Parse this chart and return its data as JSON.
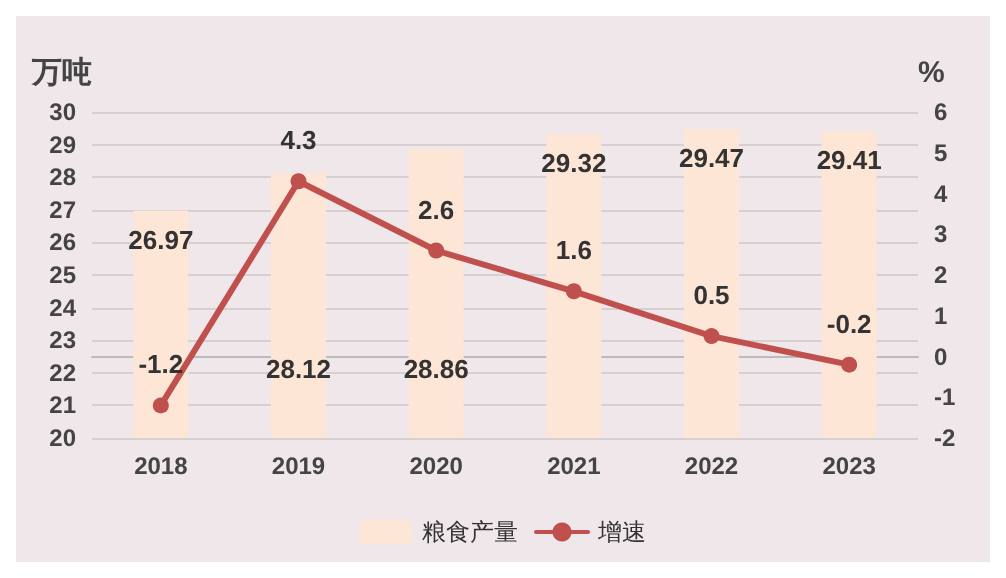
{
  "chart_data": {
    "type": "bar",
    "categories": [
      "2018",
      "2019",
      "2020",
      "2021",
      "2022",
      "2023"
    ],
    "ylabel": "万吨",
    "y2label": "%",
    "series": [
      {
        "name": "粮食产量",
        "color": "#fde6d6",
        "values": [
          26.97,
          28.12,
          28.86,
          29.32,
          29.47,
          29.41
        ]
      },
      {
        "name": "增速",
        "type": "line",
        "axis": "y2",
        "color": "#c0504d",
        "values": [
          -1.2,
          4.3,
          2.6,
          1.6,
          0.5,
          -0.2
        ]
      }
    ],
    "ylim": [
      20,
      30
    ],
    "yticks": [
      20,
      21,
      22,
      23,
      24,
      25,
      26,
      27,
      28,
      29,
      30
    ],
    "y2lim": [
      -2,
      6
    ],
    "y2ticks": [
      -2,
      -1,
      0,
      1,
      2,
      3,
      4,
      5,
      6
    ],
    "data_labels": true,
    "grid": "y",
    "legend": "bottom",
    "marker": "circle",
    "line_style": "solid"
  }
}
